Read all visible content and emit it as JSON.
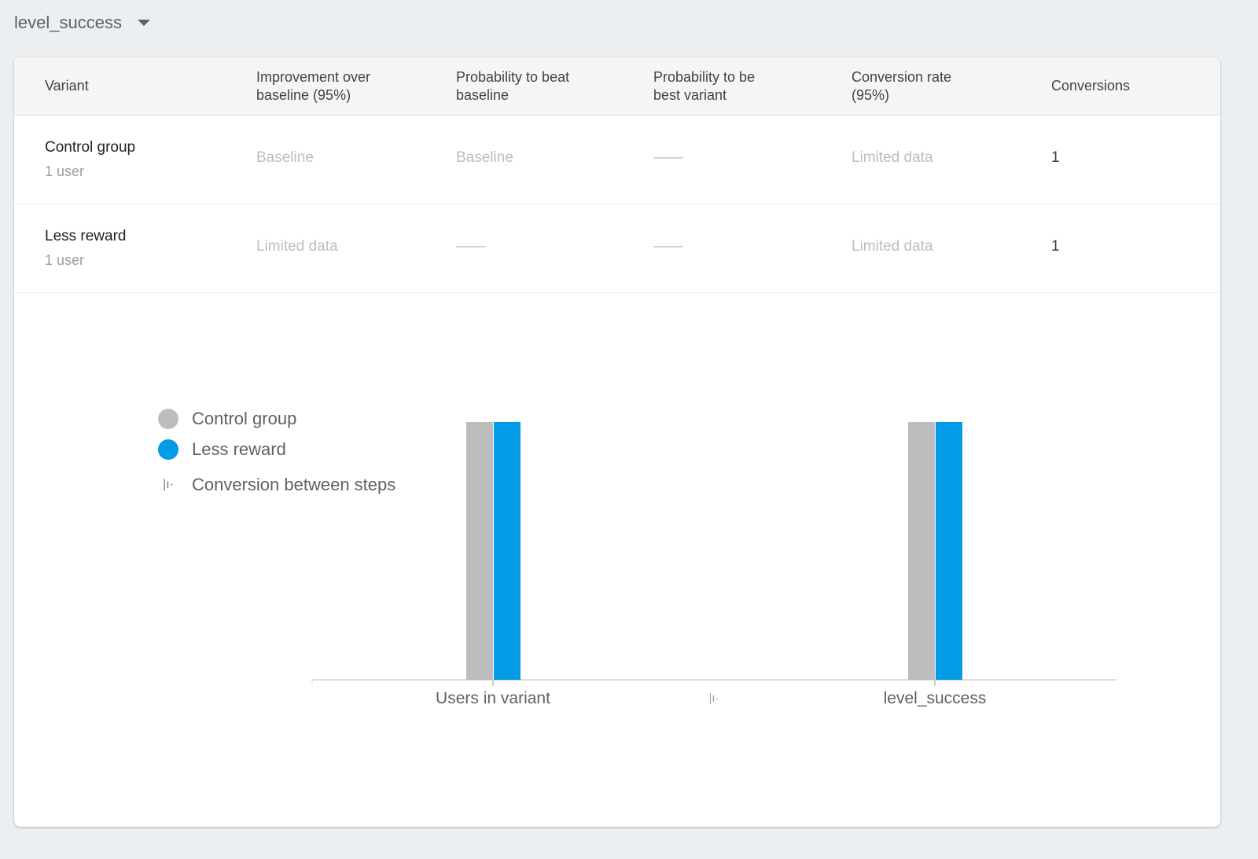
{
  "metric_selector": {
    "label": "level_success"
  },
  "table": {
    "headers": [
      [
        "Variant"
      ],
      [
        "Improvement over",
        "baseline (95%)"
      ],
      [
        "Probability to beat",
        "baseline"
      ],
      [
        "Probability to be",
        "best variant"
      ],
      [
        "Conversion rate",
        "(95%)"
      ],
      [
        "Conversions"
      ]
    ],
    "rows": [
      {
        "name": "Control group",
        "sub": "1 user",
        "improvement": "Baseline",
        "prob_beat": "Baseline",
        "prob_best": "——",
        "conv_rate": "Limited data",
        "conversions": "1"
      },
      {
        "name": "Less reward",
        "sub": "1 user",
        "improvement": "Limited data",
        "prob_beat": "——",
        "prob_best": "——",
        "conv_rate": "Limited data",
        "conversions": "1"
      }
    ]
  },
  "chart_data": {
    "type": "bar",
    "categories": [
      "Users in variant",
      "level_success"
    ],
    "series": [
      {
        "name": "Control group",
        "color": "#bdbdbd",
        "values": [
          1,
          1
        ]
      },
      {
        "name": "Less reward",
        "color": "#039be5",
        "values": [
          1,
          1
        ]
      }
    ],
    "legend_extra": "Conversion between steps",
    "legend_placement": "left",
    "ylim": [
      0,
      1
    ],
    "grid": false
  }
}
